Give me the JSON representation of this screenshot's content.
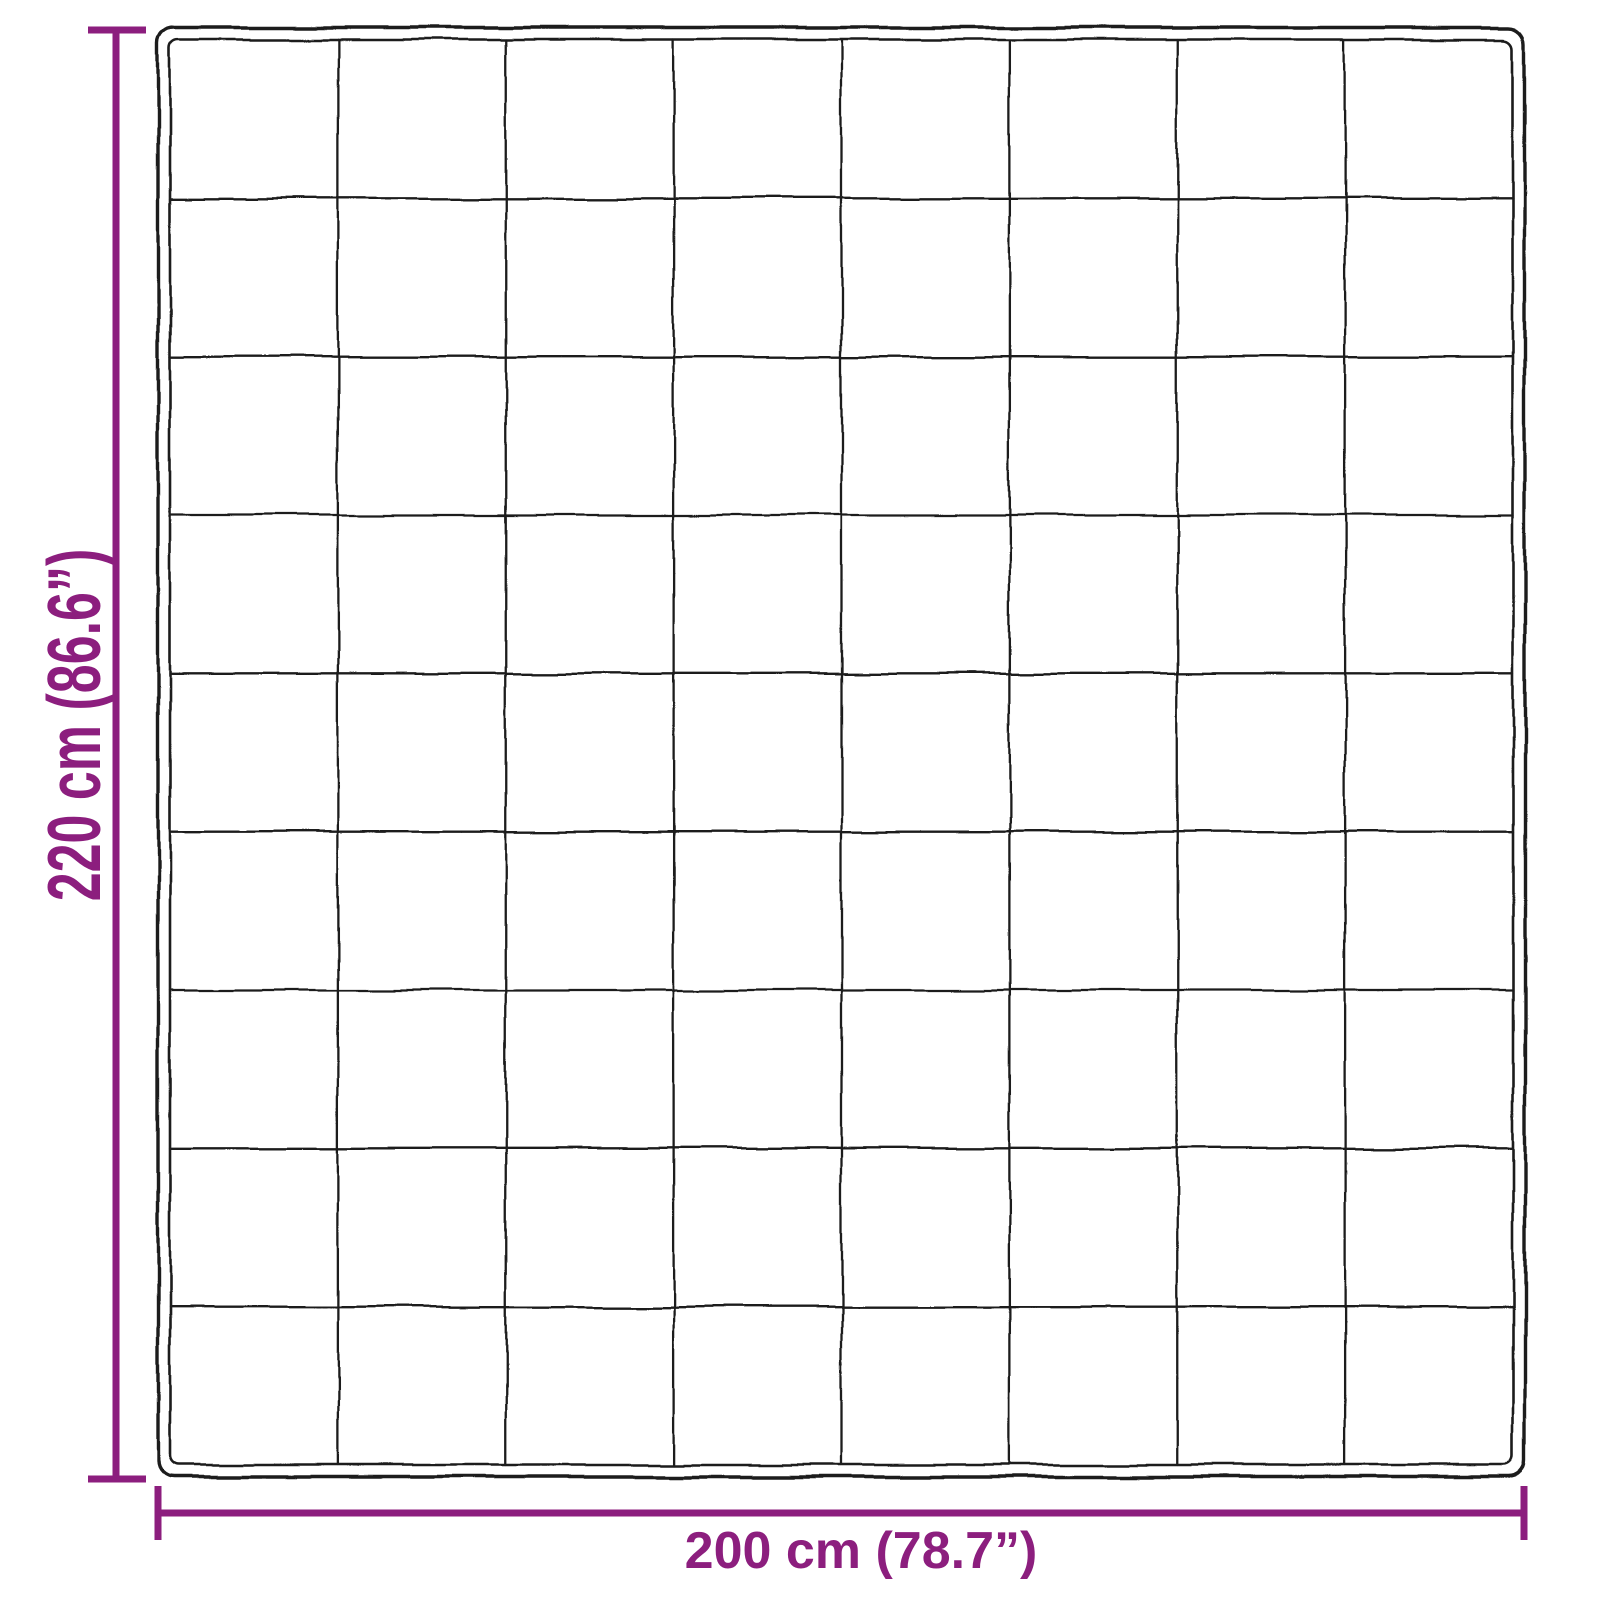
{
  "diagram": {
    "height_label": "220 cm (86.6”)",
    "width_label": "200 cm (78.7”)",
    "quilt_grid": {
      "rows": 9,
      "columns": 8
    }
  },
  "colors": {
    "dimension_accent": "#8c1e7e",
    "outline_ink": "#1c1c1c",
    "background": "#ffffff"
  }
}
